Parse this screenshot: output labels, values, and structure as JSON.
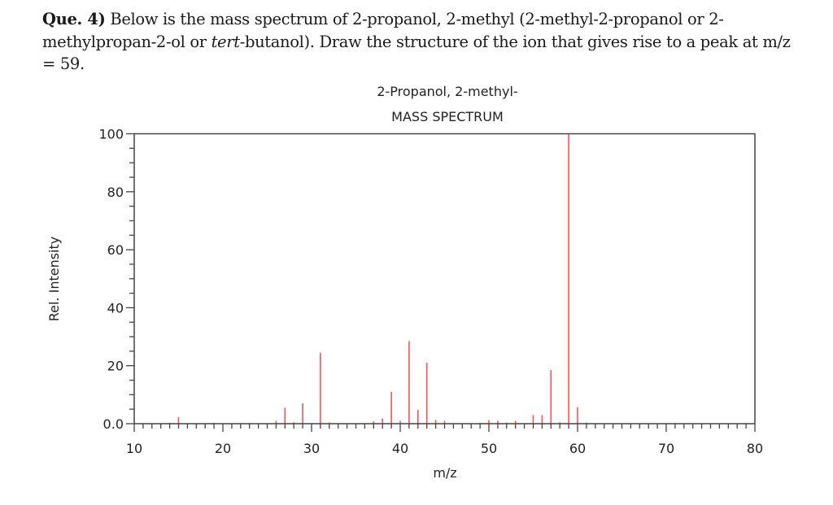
{
  "question": {
    "label": "Que. 4)",
    "text_part1": " Below is the mass spectrum of 2-propanol, 2-methyl (2-methyl-2-propanol or 2-methylpropan-2-ol or ",
    "italic": "tert",
    "text_part2": "-butanol). Draw the structure of the ion that gives rise to a peak at m/z = 59."
  },
  "chart_data": {
    "type": "bar",
    "title": "2-Propanol, 2-methyl-",
    "subtitle": "MASS SPECTRUM",
    "xlabel": "m/z",
    "ylabel": "Rel. Intensity",
    "xlim": [
      10,
      80
    ],
    "ylim": [
      0,
      100
    ],
    "xticks": [
      10,
      20,
      30,
      40,
      50,
      60,
      70,
      80
    ],
    "yticks": [
      "0.0",
      "20",
      "40",
      "60",
      "80",
      "100"
    ],
    "grid": false,
    "bar_color": "#ff3333",
    "x": [
      14,
      15,
      19,
      26,
      27,
      28,
      29,
      31,
      32,
      37,
      38,
      39,
      40,
      41,
      42,
      43,
      44,
      45,
      49,
      50,
      51,
      52,
      53,
      55,
      56,
      57,
      58,
      59,
      60,
      61,
      71
    ],
    "values": [
      0.3,
      2.2,
      0.3,
      1.0,
      5.5,
      0.5,
      7.0,
      24.5,
      0.4,
      0.8,
      1.8,
      11.0,
      1.0,
      28.5,
      4.8,
      21.0,
      1.3,
      1.0,
      0.3,
      1.2,
      1.0,
      0.4,
      1.0,
      3.0,
      3.0,
      18.5,
      0.5,
      100,
      5.7,
      0.4,
      0.3
    ]
  }
}
